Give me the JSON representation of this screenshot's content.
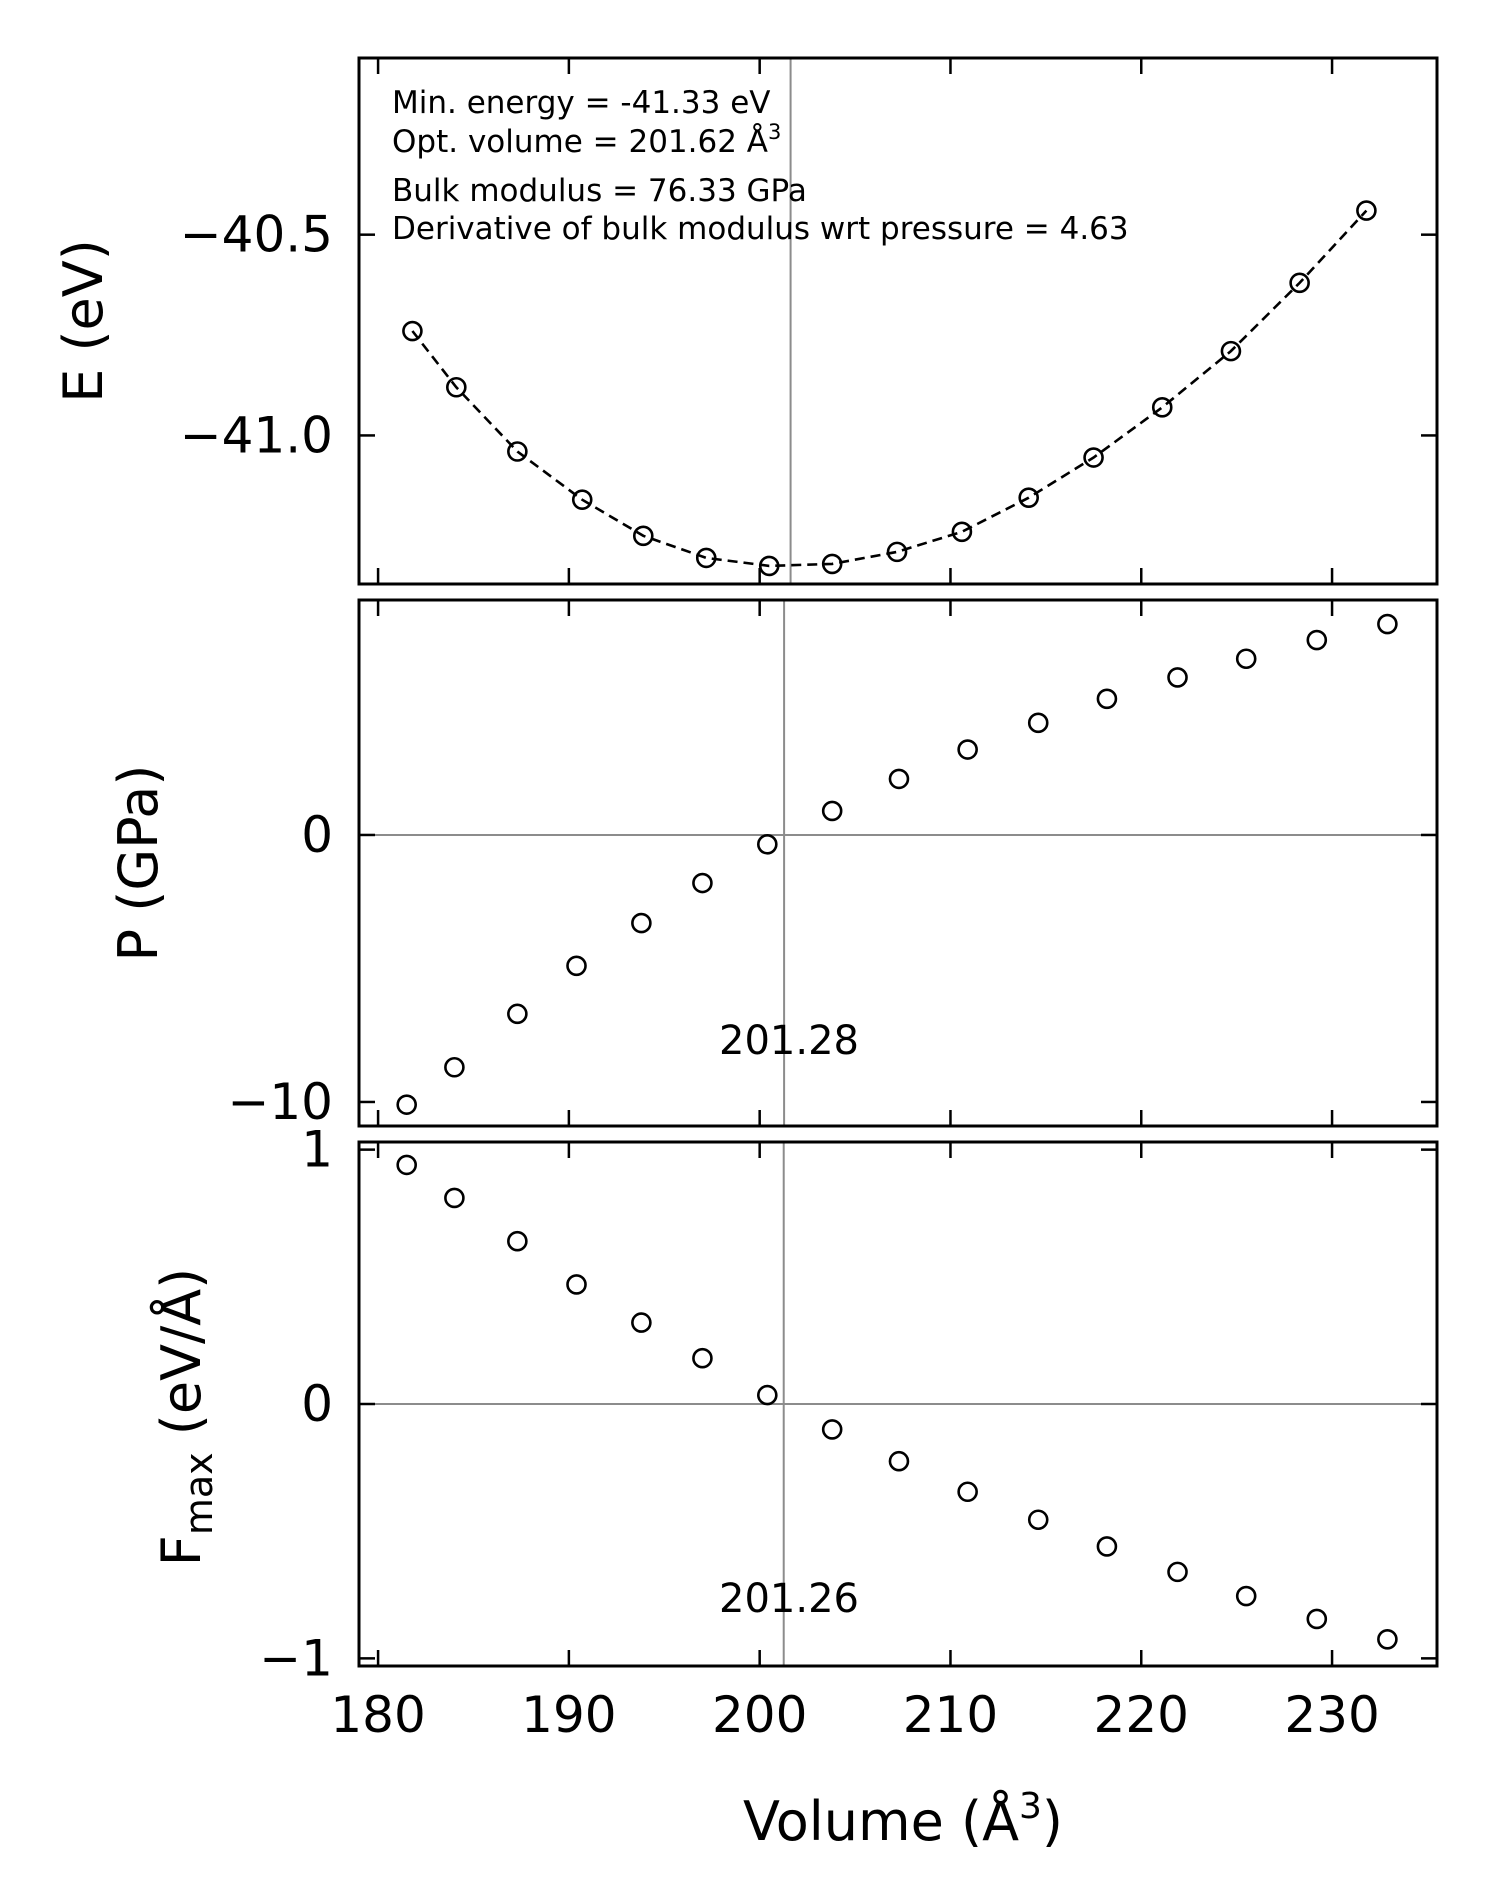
{
  "chart_data": [
    {
      "type": "scatter",
      "panel": "energy",
      "ylabel": "E (eV)",
      "xlim": [
        179,
        235.5
      ],
      "ylim": [
        -41.37,
        -40.06
      ],
      "yticks": [
        -40.5,
        -41.0
      ],
      "ytick_labels": [
        "−40.5",
        "−41.0"
      ],
      "annotations": [
        "Min. energy = -41.33 eV",
        "Opt. volume = 201.62 Å",
        "Bulk modulus = 76.33 GPa",
        "Derivative of bulk modulus wrt pressure = 4.63"
      ],
      "annotation_superscript": "3",
      "vline_x": 201.62,
      "fit": "dashed",
      "x": [
        181.8,
        184.1,
        187.3,
        190.7,
        193.9,
        197.2,
        200.5,
        203.8,
        207.2,
        210.6,
        214.1,
        217.5,
        221.1,
        224.7,
        228.3,
        231.8
      ],
      "y": [
        -40.74,
        -40.88,
        -41.04,
        -41.16,
        -41.25,
        -41.305,
        -41.325,
        -41.32,
        -41.29,
        -41.24,
        -41.155,
        -41.055,
        -40.93,
        -40.79,
        -40.62,
        -40.44
      ]
    },
    {
      "type": "scatter",
      "panel": "pressure",
      "ylabel": "P (GPa)",
      "xlim": [
        179,
        235.5
      ],
      "ylim": [
        -10.9,
        8.8
      ],
      "yticks": [
        0,
        -10
      ],
      "ytick_labels": [
        "0",
        "−10"
      ],
      "hline_y": 0,
      "vline_x": 201.28,
      "vline_label": "201.28",
      "x": [
        181.5,
        184.0,
        187.3,
        190.4,
        193.8,
        197.0,
        200.4,
        203.8,
        207.3,
        210.9,
        214.6,
        218.2,
        221.9,
        225.5,
        229.2,
        232.9
      ],
      "y": [
        -10.1,
        -8.7,
        -6.7,
        -4.9,
        -3.3,
        -1.8,
        -0.35,
        0.9,
        2.1,
        3.2,
        4.2,
        5.1,
        5.9,
        6.6,
        7.3,
        7.9
      ]
    },
    {
      "type": "scatter",
      "panel": "force",
      "ylabel_main": "F",
      "ylabel_sub": "max",
      "ylabel_unit": " (eV/Å)",
      "xlabel": "Volume (Å",
      "xlabel_superscript": "3",
      "xlabel_close": ")",
      "xlim": [
        179,
        235.5
      ],
      "ylim": [
        -1.03,
        1.03
      ],
      "yticks": [
        1,
        0,
        -1
      ],
      "ytick_labels": [
        "1",
        "0",
        "−1"
      ],
      "xticks": [
        180,
        190,
        200,
        210,
        220,
        230
      ],
      "xtick_labels": [
        "180",
        "190",
        "200",
        "210",
        "220",
        "230"
      ],
      "hline_y": 0,
      "vline_x": 201.26,
      "vline_label": "201.26",
      "x": [
        181.5,
        184.0,
        187.3,
        190.4,
        193.8,
        197.0,
        200.4,
        203.8,
        207.3,
        210.9,
        214.6,
        218.2,
        221.9,
        225.5,
        229.2,
        232.9
      ],
      "y": [
        0.94,
        0.81,
        0.64,
        0.47,
        0.32,
        0.18,
        0.035,
        -0.1,
        -0.225,
        -0.345,
        -0.455,
        -0.56,
        -0.66,
        -0.755,
        -0.845,
        -0.925
      ]
    }
  ]
}
